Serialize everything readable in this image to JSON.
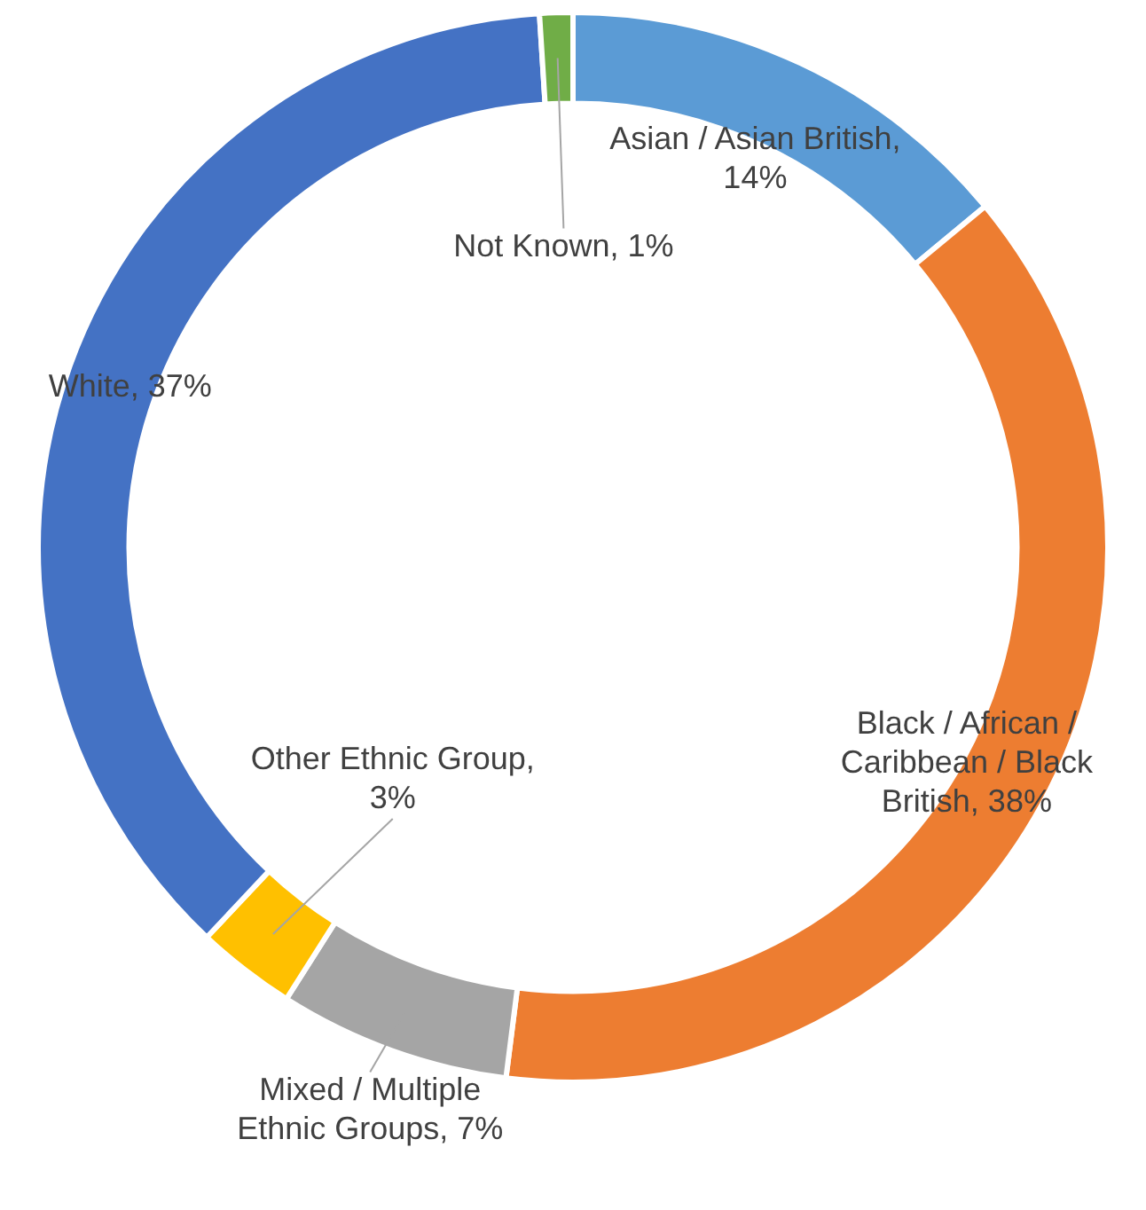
{
  "chart_data": {
    "type": "donut",
    "categories": [
      "Asian / Asian British",
      "Black / African / Caribbean / Black British",
      "Mixed / Multiple Ethnic Groups",
      "Other Ethnic Group",
      "White",
      "Not Known"
    ],
    "values": [
      14,
      38,
      7,
      3,
      37,
      1
    ],
    "value_labels": [
      ", 14%",
      ", 38%",
      ", 7%",
      ", 3%",
      ", 37%",
      ", 1%"
    ],
    "colors": [
      "#5b9bd5",
      "#ed7d31",
      "#a5a5a5",
      "#ffc000",
      "#4472c4",
      "#70ad47"
    ],
    "legend": false
  }
}
